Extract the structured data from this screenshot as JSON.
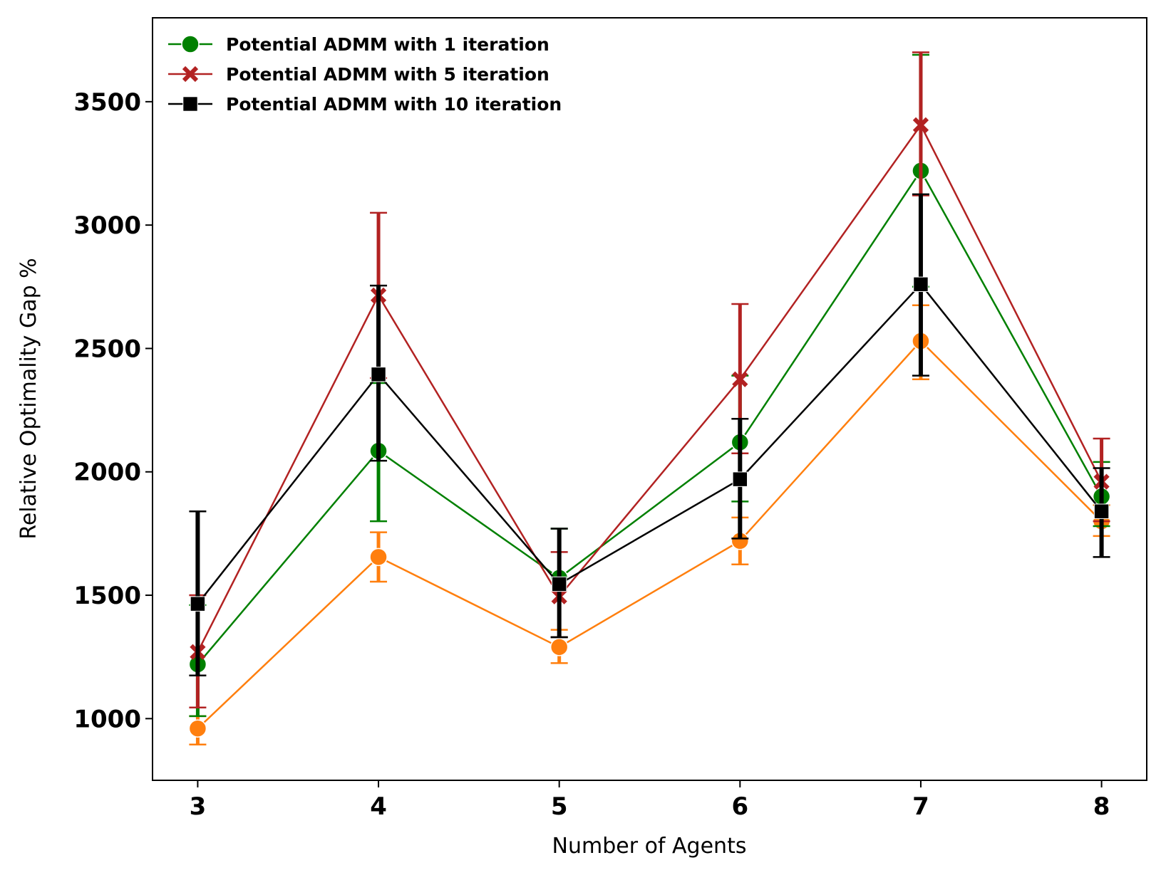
{
  "chart_data": {
    "type": "line",
    "xlabel": "Number of Agents",
    "ylabel": "Relative Optimality Gap %",
    "x": [
      3,
      4,
      5,
      6,
      7,
      8
    ],
    "xlim": [
      2.75,
      8.25
    ],
    "ylim": [
      750,
      3840
    ],
    "yticks": [
      1000,
      1500,
      2000,
      2500,
      3000,
      3500
    ],
    "grid": false,
    "legend_position": "top-left",
    "series": [
      {
        "name": "Potential ADMM with 1 iteration",
        "color": "#008000",
        "marker": "circle",
        "legend": true,
        "values": [
          1220,
          2085,
          1570,
          2120,
          3220,
          1900
        ],
        "err_low": [
          1010,
          1800,
          1330,
          1880,
          2750,
          1780
        ],
        "err_high": [
          1460,
          2360,
          1770,
          2390,
          3690,
          2040
        ]
      },
      {
        "name": "Potential ADMM with 5 iteration",
        "color": "#b22222",
        "marker": "x",
        "legend": true,
        "values": [
          1270,
          2715,
          1495,
          2375,
          3405,
          1960
        ],
        "err_low": [
          1045,
          2380,
          1330,
          2075,
          3120,
          1800
        ],
        "err_high": [
          1500,
          3050,
          1675,
          2680,
          3700,
          2135
        ]
      },
      {
        "name": "Potential ADMM with 10 iteration",
        "color": "#000000",
        "marker": "square",
        "legend": true,
        "values": [
          1465,
          2395,
          1545,
          1970,
          2760,
          1840
        ],
        "err_low": [
          1175,
          2045,
          1330,
          1730,
          2390,
          1655
        ],
        "err_high": [
          1840,
          2755,
          1770,
          2215,
          3125,
          2015
        ]
      },
      {
        "name": "",
        "color": "#ff7f0e",
        "marker": "circle",
        "legend": false,
        "values": [
          960,
          1655,
          1290,
          1720,
          2530,
          1800
        ],
        "err_low": [
          895,
          1555,
          1225,
          1625,
          2375,
          1740
        ],
        "err_high": [
          1010,
          1755,
          1360,
          1815,
          2675,
          1865
        ]
      }
    ]
  }
}
